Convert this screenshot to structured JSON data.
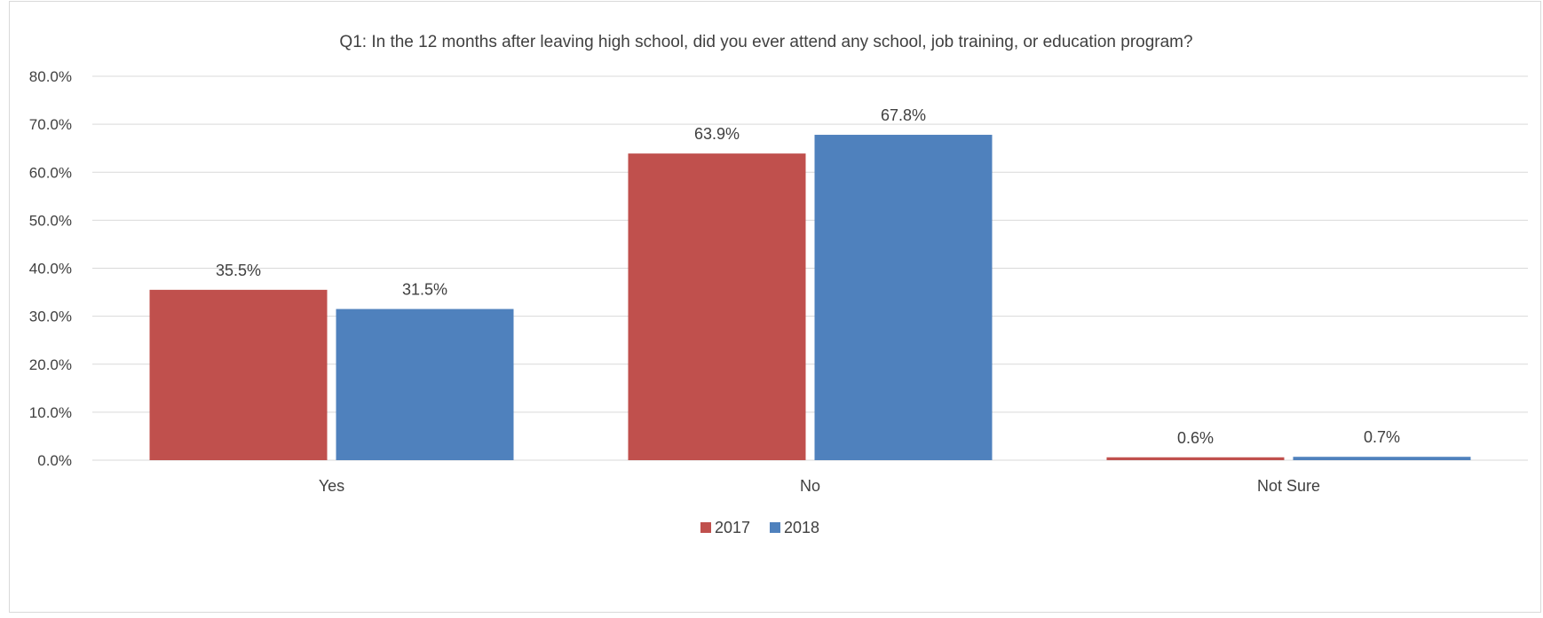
{
  "chart_data": {
    "type": "bar",
    "title": "Q1: In the 12 months after leaving high school, did you ever attend any school, job training, or education program?",
    "categories": [
      "Yes",
      "No",
      "Not Sure"
    ],
    "series": [
      {
        "name": "2017",
        "values": [
          35.5,
          63.9,
          0.6
        ],
        "labels": [
          "35.5%",
          "63.9%",
          "0.6%"
        ],
        "color": "#C0504D"
      },
      {
        "name": "2018",
        "values": [
          31.5,
          67.8,
          0.7
        ],
        "labels": [
          "31.5%",
          "67.8%",
          "0.7%"
        ],
        "color": "#4F81BD"
      }
    ],
    "ylim": [
      0,
      80
    ],
    "yticks": [
      "0.0%",
      "10.0%",
      "20.0%",
      "30.0%",
      "40.0%",
      "50.0%",
      "60.0%",
      "70.0%",
      "80.0%"
    ],
    "ytick_values": [
      0,
      10,
      20,
      30,
      40,
      50,
      60,
      70,
      80
    ],
    "grid": true,
    "legend": "bottom-center",
    "gridline_color": "#d9d9d9",
    "text_color": "#404040"
  }
}
